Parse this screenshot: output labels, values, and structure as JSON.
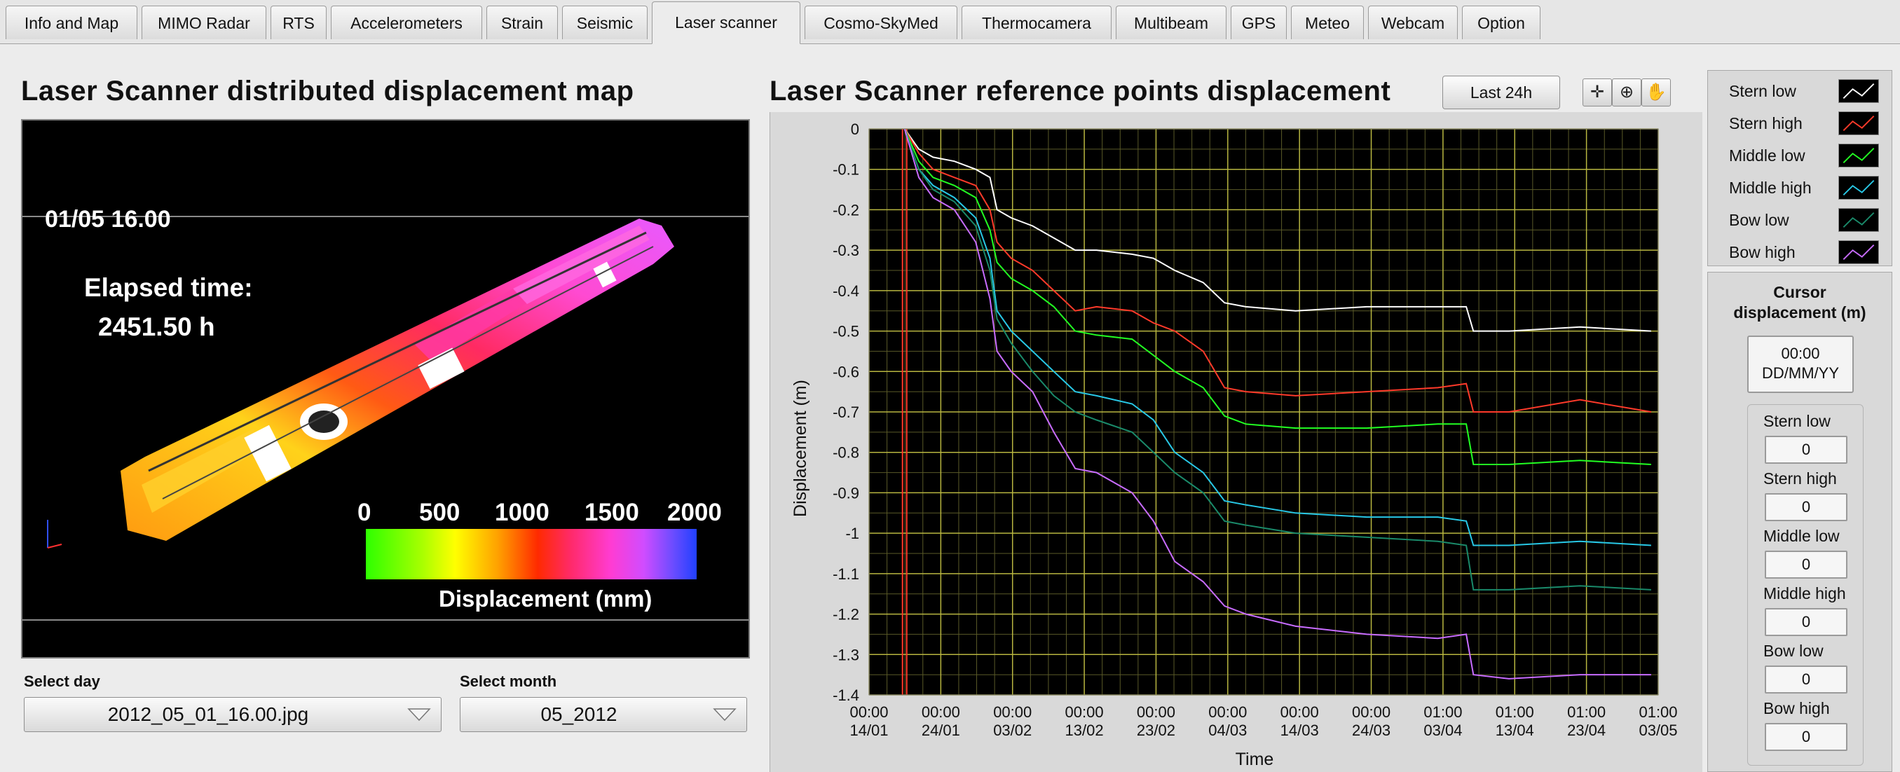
{
  "tabs": [
    {
      "label": "Info and Map",
      "active": false
    },
    {
      "label": "MIMO Radar",
      "active": false
    },
    {
      "label": "RTS",
      "active": false
    },
    {
      "label": "Accelerometers",
      "active": false
    },
    {
      "label": "Strain",
      "active": false
    },
    {
      "label": "Seismic",
      "active": false
    },
    {
      "label": "Laser scanner",
      "active": true
    },
    {
      "label": "Cosmo-SkyMed",
      "active": false
    },
    {
      "label": "Thermocamera",
      "active": false
    },
    {
      "label": "Multibeam",
      "active": false
    },
    {
      "label": "GPS",
      "active": false
    },
    {
      "label": "Meteo",
      "active": false
    },
    {
      "label": "Webcam",
      "active": false
    },
    {
      "label": "Option",
      "active": false
    }
  ],
  "map_panel": {
    "title": "Laser Scanner distributed displacement map",
    "timestamp": "01/05 16.00",
    "elapsed_label": "Elapsed time:",
    "elapsed_value": "2451.50 h",
    "colorbar_ticks": [
      "0",
      "500",
      "1000",
      "1500",
      "2000"
    ],
    "colorbar_label": "Displacement (mm)",
    "select_day_label": "Select day",
    "select_day_value": "2012_05_01_16.00.jpg",
    "select_month_label": "Select month",
    "select_month_value": "05_2012"
  },
  "chart_panel": {
    "title": "Laser Scanner reference points displacement",
    "range_button": "Last 24h",
    "tools": [
      "crosshair-tool-icon",
      "zoom-tool-icon",
      "pan-hand-icon"
    ]
  },
  "chart_data": {
    "type": "line",
    "xlabel": "Time",
    "ylabel": "Displacement (m)",
    "ylim": [
      -1.4,
      0
    ],
    "yticks": [
      "0",
      "-0.1",
      "-0.2",
      "-0.3",
      "-0.4",
      "-0.5",
      "-0.6",
      "-0.7",
      "-0.8",
      "-0.9",
      "-1",
      "-1.1",
      "-1.2",
      "-1.3",
      "-1.4"
    ],
    "xlim_days": [
      0,
      111
    ],
    "xticks": [
      {
        "time": "00:00",
        "date": "14/01"
      },
      {
        "time": "00:00",
        "date": "24/01"
      },
      {
        "time": "00:00",
        "date": "03/02"
      },
      {
        "time": "00:00",
        "date": "13/02"
      },
      {
        "time": "00:00",
        "date": "23/02"
      },
      {
        "time": "00:00",
        "date": "04/03"
      },
      {
        "time": "00:00",
        "date": "14/03"
      },
      {
        "time": "00:00",
        "date": "24/03"
      },
      {
        "time": "01:00",
        "date": "03/04"
      },
      {
        "time": "01:00",
        "date": "13/04"
      },
      {
        "time": "01:00",
        "date": "23/04"
      },
      {
        "time": "01:00",
        "date": "03/05"
      }
    ],
    "grid": true,
    "cursor_date": "19/01",
    "series": [
      {
        "name": "Stern low",
        "color": "#ffffff",
        "x": [
          "19/01",
          "21/01",
          "23/01",
          "26/01",
          "29/01",
          "31/01",
          "01/02",
          "03/02",
          "06/02",
          "09/02",
          "12/02",
          "15/02",
          "20/02",
          "23/02",
          "26/02",
          "01/03",
          "04/03",
          "07/03",
          "14/03",
          "24/03",
          "03/04",
          "07/04",
          "08/04",
          "13/04",
          "23/04",
          "03/05"
        ],
        "y": [
          0,
          -0.05,
          -0.07,
          -0.08,
          -0.1,
          -0.12,
          -0.2,
          -0.22,
          -0.24,
          -0.27,
          -0.3,
          -0.3,
          -0.31,
          -0.32,
          -0.35,
          -0.38,
          -0.43,
          -0.44,
          -0.45,
          -0.44,
          -0.44,
          -0.44,
          -0.5,
          -0.5,
          -0.49,
          -0.5
        ]
      },
      {
        "name": "Stern high",
        "color": "#ff3a2a",
        "x": [
          "19/01",
          "21/01",
          "23/01",
          "26/01",
          "29/01",
          "31/01",
          "01/02",
          "03/02",
          "06/02",
          "09/02",
          "12/02",
          "15/02",
          "20/02",
          "23/02",
          "26/02",
          "01/03",
          "04/03",
          "07/03",
          "14/03",
          "24/03",
          "03/04",
          "07/04",
          "08/04",
          "13/04",
          "23/04",
          "03/05"
        ],
        "y": [
          0,
          -0.06,
          -0.1,
          -0.12,
          -0.14,
          -0.2,
          -0.28,
          -0.32,
          -0.35,
          -0.4,
          -0.45,
          -0.44,
          -0.45,
          -0.48,
          -0.5,
          -0.55,
          -0.64,
          -0.65,
          -0.66,
          -0.65,
          -0.64,
          -0.63,
          -0.7,
          -0.7,
          -0.67,
          -0.7
        ]
      },
      {
        "name": "Middle low",
        "color": "#22ff22",
        "x": [
          "19/01",
          "21/01",
          "23/01",
          "26/01",
          "29/01",
          "31/01",
          "01/02",
          "03/02",
          "06/02",
          "09/02",
          "12/02",
          "15/02",
          "20/02",
          "23/02",
          "26/02",
          "01/03",
          "04/03",
          "07/03",
          "14/03",
          "24/03",
          "03/04",
          "07/04",
          "08/04",
          "13/04",
          "23/04",
          "03/05"
        ],
        "y": [
          0,
          -0.08,
          -0.12,
          -0.14,
          -0.17,
          -0.25,
          -0.33,
          -0.37,
          -0.4,
          -0.44,
          -0.5,
          -0.51,
          -0.52,
          -0.56,
          -0.6,
          -0.64,
          -0.71,
          -0.73,
          -0.74,
          -0.74,
          -0.73,
          -0.73,
          -0.83,
          -0.83,
          -0.82,
          -0.83
        ]
      },
      {
        "name": "Middle high",
        "color": "#28c8e6",
        "x": [
          "19/01",
          "21/01",
          "23/01",
          "26/01",
          "29/01",
          "31/01",
          "01/02",
          "03/02",
          "06/02",
          "09/02",
          "12/02",
          "15/02",
          "20/02",
          "23/02",
          "26/02",
          "01/03",
          "04/03",
          "07/03",
          "14/03",
          "24/03",
          "03/04",
          "07/04",
          "08/04",
          "13/04",
          "23/04",
          "03/05"
        ],
        "y": [
          0,
          -0.1,
          -0.14,
          -0.17,
          -0.22,
          -0.32,
          -0.45,
          -0.5,
          -0.55,
          -0.6,
          -0.65,
          -0.66,
          -0.68,
          -0.72,
          -0.8,
          -0.85,
          -0.92,
          -0.93,
          -0.95,
          -0.96,
          -0.96,
          -0.97,
          -1.03,
          -1.03,
          -1.02,
          -1.03
        ]
      },
      {
        "name": "Bow low",
        "color": "#1a8a6a",
        "x": [
          "19/01",
          "21/01",
          "23/01",
          "26/01",
          "29/01",
          "31/01",
          "01/02",
          "03/02",
          "06/02",
          "09/02",
          "12/02",
          "15/02",
          "20/02",
          "23/02",
          "26/02",
          "01/03",
          "04/03",
          "07/03",
          "14/03",
          "24/03",
          "03/04",
          "07/04",
          "08/04",
          "13/04",
          "23/04",
          "03/05"
        ],
        "y": [
          0,
          -0.1,
          -0.15,
          -0.18,
          -0.24,
          -0.35,
          -0.47,
          -0.53,
          -0.6,
          -0.66,
          -0.7,
          -0.72,
          -0.75,
          -0.8,
          -0.85,
          -0.9,
          -0.97,
          -0.98,
          -1.0,
          -1.01,
          -1.02,
          -1.03,
          -1.14,
          -1.14,
          -1.13,
          -1.14
        ]
      },
      {
        "name": "Bow high",
        "color": "#c86cff",
        "x": [
          "19/01",
          "21/01",
          "23/01",
          "26/01",
          "29/01",
          "31/01",
          "01/02",
          "03/02",
          "06/02",
          "09/02",
          "12/02",
          "15/02",
          "20/02",
          "23/02",
          "26/02",
          "01/03",
          "04/03",
          "07/03",
          "14/03",
          "24/03",
          "03/04",
          "07/04",
          "08/04",
          "13/04",
          "23/04",
          "03/05"
        ],
        "y": [
          0,
          -0.12,
          -0.17,
          -0.2,
          -0.28,
          -0.42,
          -0.55,
          -0.6,
          -0.65,
          -0.75,
          -0.84,
          -0.85,
          -0.9,
          -0.97,
          -1.07,
          -1.12,
          -1.18,
          -1.2,
          -1.23,
          -1.25,
          -1.26,
          -1.25,
          -1.35,
          -1.36,
          -1.35,
          -1.35
        ]
      }
    ]
  },
  "legend": {
    "items": [
      {
        "label": "Stern low",
        "color": "#ffffff"
      },
      {
        "label": "Stern high",
        "color": "#ff3a2a"
      },
      {
        "label": "Middle low",
        "color": "#22ff22"
      },
      {
        "label": "Middle high",
        "color": "#28c8e6"
      },
      {
        "label": "Bow low",
        "color": "#1a8a6a"
      },
      {
        "label": "Bow high",
        "color": "#c86cff"
      }
    ]
  },
  "cursor_panel": {
    "title_line1": "Cursor",
    "title_line2": "displacement (m)",
    "time": "00:00",
    "date": "DD/MM/YY",
    "values": [
      {
        "label": "Stern low",
        "value": "0"
      },
      {
        "label": "Stern high",
        "value": "0"
      },
      {
        "label": "Middle low",
        "value": "0"
      },
      {
        "label": "Middle high",
        "value": "0"
      },
      {
        "label": "Bow low",
        "value": "0"
      },
      {
        "label": "Bow high",
        "value": "0"
      }
    ]
  }
}
